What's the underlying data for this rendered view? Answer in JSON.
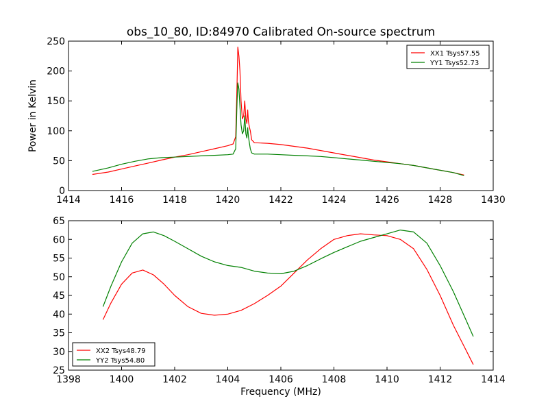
{
  "chart_data": [
    {
      "type": "line",
      "title": "obs_10_80, ID:84970 Calibrated On-source spectrum",
      "xlabel": "",
      "ylabel": "Power in Kelvin",
      "xlim": [
        1414,
        1430
      ],
      "ylim": [
        0,
        250
      ],
      "xticks": [
        "1414",
        "1416",
        "1418",
        "1420",
        "1422",
        "1424",
        "1426",
        "1428",
        "1430"
      ],
      "yticks": [
        "0",
        "50",
        "100",
        "150",
        "200",
        "250"
      ],
      "legend_position": "top-right",
      "grid": false,
      "series": [
        {
          "name": "XX1 Tsys57.55",
          "color": "#ff0000",
          "x": [
            1414.9,
            1415.5,
            1416,
            1416.5,
            1417,
            1417.5,
            1418,
            1418.5,
            1419,
            1419.5,
            1420,
            1420.2,
            1420.3,
            1420.35,
            1420.38,
            1420.42,
            1420.46,
            1420.5,
            1420.55,
            1420.6,
            1420.64,
            1420.68,
            1420.72,
            1420.75,
            1420.78,
            1420.82,
            1420.85,
            1420.9,
            1421,
            1421.5,
            1422,
            1422.5,
            1423,
            1423.5,
            1424,
            1424.5,
            1425,
            1425.5,
            1426,
            1426.5,
            1427,
            1427.5,
            1428,
            1428.5,
            1428.9
          ],
          "y": [
            27,
            31,
            36,
            41,
            46,
            51,
            56,
            60,
            65,
            70,
            75,
            78,
            90,
            180,
            240,
            225,
            200,
            150,
            120,
            125,
            150,
            120,
            112,
            135,
            115,
            105,
            100,
            85,
            80,
            79,
            77,
            74,
            71,
            67,
            63,
            59,
            55,
            51,
            48,
            45,
            42,
            38,
            34,
            30,
            26
          ]
        },
        {
          "name": "YY1 Tsys52.73",
          "color": "#008000",
          "x": [
            1414.9,
            1415.5,
            1416,
            1416.5,
            1417,
            1417.5,
            1418,
            1418.5,
            1419,
            1419.5,
            1420,
            1420.2,
            1420.3,
            1420.35,
            1420.38,
            1420.42,
            1420.46,
            1420.5,
            1420.55,
            1420.6,
            1420.64,
            1420.68,
            1420.72,
            1420.75,
            1420.78,
            1420.82,
            1420.85,
            1420.9,
            1421,
            1421.5,
            1422,
            1422.5,
            1423,
            1423.5,
            1424,
            1424.5,
            1425,
            1425.5,
            1426,
            1426.5,
            1427,
            1427.5,
            1428,
            1428.5,
            1428.9
          ],
          "y": [
            32,
            38,
            44,
            49,
            53,
            55,
            56,
            57,
            58,
            59,
            60,
            61,
            70,
            150,
            180,
            170,
            140,
            110,
            95,
            100,
            125,
            95,
            88,
            105,
            90,
            78,
            70,
            63,
            61,
            61,
            60,
            59,
            58,
            57,
            55,
            53,
            51,
            49,
            47,
            45,
            42,
            38,
            34,
            30,
            25
          ]
        }
      ]
    },
    {
      "type": "line",
      "title": "",
      "xlabel": "Frequency (MHz)",
      "ylabel": "",
      "xlim": [
        1398,
        1414
      ],
      "ylim": [
        25,
        65
      ],
      "xticks": [
        "1398",
        "1400",
        "1402",
        "1404",
        "1406",
        "1408",
        "1410",
        "1412",
        "1414"
      ],
      "yticks": [
        "25",
        "30",
        "35",
        "40",
        "45",
        "50",
        "55",
        "60",
        "65"
      ],
      "legend_position": "bottom-left",
      "grid": false,
      "series": [
        {
          "name": "XX2 Tsys48.79",
          "color": "#ff0000",
          "x": [
            1399.3,
            1399.6,
            1400,
            1400.4,
            1400.8,
            1401.2,
            1401.6,
            1402,
            1402.5,
            1403,
            1403.5,
            1404,
            1404.5,
            1405,
            1405.5,
            1406,
            1406.5,
            1407,
            1407.5,
            1408,
            1408.5,
            1409,
            1409.5,
            1410,
            1410.5,
            1411,
            1411.5,
            1412,
            1412.5,
            1413,
            1413.25
          ],
          "y": [
            38.5,
            43,
            48,
            51,
            51.8,
            50.5,
            48,
            45,
            42,
            40.2,
            39.7,
            40,
            41,
            42.8,
            45,
            47.5,
            51,
            54.5,
            57.5,
            60,
            61,
            61.5,
            61.2,
            61,
            60,
            57.5,
            52,
            45,
            37,
            30,
            26.5
          ]
        },
        {
          "name": "YY2 Tsys54.80",
          "color": "#008000",
          "x": [
            1399.3,
            1399.6,
            1400,
            1400.4,
            1400.8,
            1401.2,
            1401.6,
            1402,
            1402.5,
            1403,
            1403.5,
            1404,
            1404.5,
            1405,
            1405.5,
            1406,
            1406.5,
            1407,
            1407.5,
            1408,
            1408.5,
            1409,
            1409.5,
            1410,
            1410.5,
            1411,
            1411.5,
            1412,
            1412.5,
            1413,
            1413.25
          ],
          "y": [
            42,
            47.5,
            54,
            59,
            61.5,
            62,
            61,
            59.5,
            57.5,
            55.5,
            54,
            53,
            52.5,
            51.5,
            51,
            50.8,
            51.5,
            53,
            54.8,
            56.5,
            58,
            59.5,
            60.5,
            61.5,
            62.5,
            62,
            59,
            53,
            46,
            38,
            34
          ]
        }
      ]
    }
  ]
}
